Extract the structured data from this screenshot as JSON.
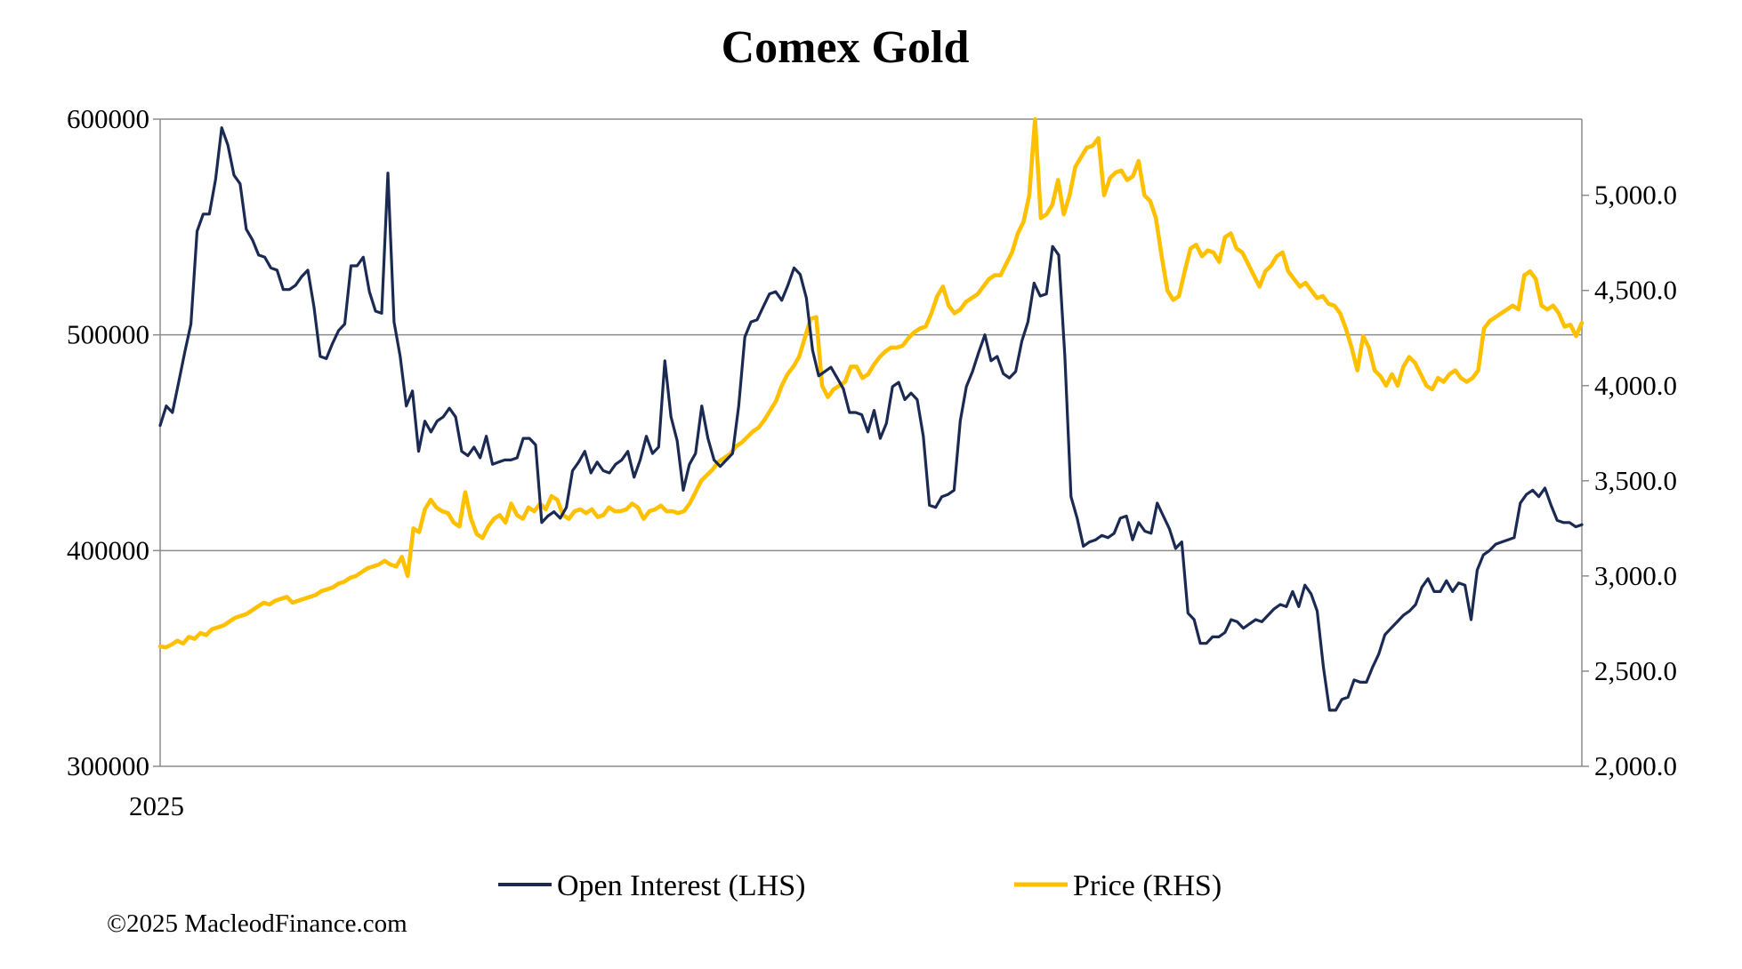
{
  "footer": "©2025 MacleodFinance.com",
  "chart_data": {
    "type": "line",
    "title": "Comex Gold",
    "x_start_label": "2025",
    "grid": true,
    "legend_position": "bottom",
    "y_left": {
      "min": 300000,
      "max": 600000,
      "ticks": [
        300000,
        400000,
        500000,
        600000
      ],
      "tick_labels": [
        "300000",
        "400000",
        "500000",
        "600000"
      ]
    },
    "y_right": {
      "min": 2000,
      "max": 5400,
      "ticks": [
        2000,
        2500,
        3000,
        3500,
        4000,
        4500,
        5000
      ],
      "tick_labels": [
        "2,000.0",
        "2,500.0",
        "3,000.0",
        "3,500.0",
        "4,000.0",
        "4,500.0",
        "5,000.0"
      ]
    },
    "series": [
      {
        "name": "Open Interest (LHS)",
        "axis": "left",
        "color": "#1b2a52",
        "values": [
          458000,
          467000,
          464000,
          478000,
          492000,
          505000,
          548000,
          556000,
          556000,
          572000,
          596000,
          588000,
          574000,
          570000,
          549000,
          544000,
          537000,
          536000,
          531000,
          530000,
          521000,
          521000,
          523000,
          527000,
          530000,
          513000,
          490000,
          489000,
          496000,
          502000,
          505000,
          532000,
          532000,
          536000,
          520000,
          511000,
          510000,
          575000,
          506000,
          490000,
          467000,
          474000,
          446000,
          460000,
          455000,
          460000,
          462000,
          466000,
          462000,
          446000,
          444000,
          448000,
          443000,
          453000,
          440000,
          441000,
          442000,
          442000,
          443000,
          452000,
          452000,
          449000,
          413000,
          416000,
          418000,
          415000,
          420000,
          437000,
          441000,
          446000,
          436000,
          441000,
          437000,
          436000,
          440000,
          442000,
          446000,
          434000,
          442000,
          453000,
          445000,
          448000,
          488000,
          462000,
          451000,
          428000,
          440000,
          445000,
          467000,
          452000,
          442000,
          439000,
          442000,
          445000,
          467000,
          499000,
          506000,
          507000,
          513000,
          519000,
          520000,
          516000,
          523000,
          531000,
          528000,
          517000,
          493000,
          481000,
          483000,
          485000,
          480000,
          475000,
          464000,
          464000,
          463000,
          455000,
          465000,
          452000,
          459000,
          476000,
          478000,
          470000,
          473000,
          470000,
          453000,
          421000,
          420000,
          425000,
          426000,
          428000,
          460000,
          476000,
          483000,
          492000,
          500000,
          488000,
          490000,
          482000,
          480000,
          483000,
          497000,
          506000,
          524000,
          518000,
          519000,
          541000,
          537000,
          490000,
          425000,
          415000,
          402000,
          404000,
          405000,
          407000,
          406000,
          408000,
          415000,
          416000,
          405000,
          413000,
          409000,
          408000,
          422000,
          416000,
          410000,
          401000,
          404000,
          371000,
          368000,
          357000,
          357000,
          360000,
          360000,
          362000,
          368000,
          367000,
          364000,
          366000,
          368000,
          367000,
          370000,
          373000,
          375000,
          374000,
          381000,
          374000,
          384000,
          380000,
          372000,
          346000,
          326000,
          326000,
          331000,
          332000,
          340000,
          339000,
          339000,
          346000,
          352000,
          361000,
          364000,
          367000,
          370000,
          372000,
          375000,
          383000,
          387000,
          381000,
          381000,
          386000,
          381000,
          385000,
          384000,
          368000,
          391000,
          398000,
          400000,
          403000,
          404000,
          405000,
          406000,
          422000,
          426000,
          428000,
          425000,
          429000,
          421000,
          414000,
          413000,
          413000,
          411000,
          412000
        ],
        "values_note_sampled": true
      },
      {
        "name": "Price (RHS)",
        "axis": "right",
        "color": "#ffc000",
        "values": [
          2630,
          2625,
          2640,
          2660,
          2645,
          2680,
          2670,
          2700,
          2690,
          2720,
          2730,
          2740,
          2760,
          2780,
          2790,
          2800,
          2820,
          2840,
          2860,
          2850,
          2870,
          2880,
          2890,
          2860,
          2870,
          2880,
          2890,
          2900,
          2920,
          2930,
          2940,
          2960,
          2970,
          2990,
          3000,
          3020,
          3040,
          3050,
          3060,
          3080,
          3060,
          3050,
          3100,
          3000,
          3250,
          3230,
          3350,
          3400,
          3360,
          3340,
          3330,
          3280,
          3260,
          3440,
          3300,
          3220,
          3200,
          3260,
          3300,
          3320,
          3280,
          3380,
          3320,
          3300,
          3360,
          3340,
          3380,
          3350,
          3420,
          3400,
          3320,
          3300,
          3340,
          3350,
          3330,
          3350,
          3310,
          3320,
          3360,
          3340,
          3340,
          3350,
          3380,
          3360,
          3300,
          3340,
          3350,
          3370,
          3340,
          3340,
          3330,
          3340,
          3380,
          3440,
          3500,
          3530,
          3560,
          3600,
          3620,
          3640,
          3680,
          3700,
          3730,
          3760,
          3780,
          3820,
          3870,
          3920,
          4000,
          4060,
          4100,
          4150,
          4250,
          4350,
          4360,
          4000,
          3940,
          3980,
          4000,
          4020,
          4100,
          4100,
          4040,
          4060,
          4110,
          4150,
          4180,
          4200,
          4200,
          4210,
          4250,
          4280,
          4300,
          4310,
          4380,
          4470,
          4520,
          4420,
          4380,
          4400,
          4440,
          4460,
          4480,
          4520,
          4560,
          4580,
          4580,
          4640,
          4700,
          4800,
          4860,
          5000,
          5400,
          4880,
          4900,
          4950,
          5080,
          4900,
          5000,
          5150,
          5200,
          5250,
          5260,
          5300,
          5000,
          5090,
          5120,
          5130,
          5080,
          5100,
          5180,
          5000,
          4970,
          4880,
          4680,
          4500,
          4450,
          4470,
          4600,
          4720,
          4740,
          4680,
          4710,
          4700,
          4650,
          4780,
          4800,
          4720,
          4700,
          4640,
          4580,
          4520,
          4600,
          4630,
          4680,
          4700,
          4600,
          4560,
          4520,
          4540,
          4500,
          4460,
          4470,
          4430,
          4420,
          4380,
          4300,
          4200,
          4080,
          4260,
          4200,
          4080,
          4050,
          4000,
          4060,
          4000,
          4100,
          4150,
          4120,
          4060,
          4000,
          3980,
          4040,
          4020,
          4060,
          4080,
          4040,
          4020,
          4040,
          4080,
          4300,
          4340,
          4360,
          4380,
          4400,
          4420,
          4400,
          4580,
          4600,
          4560,
          4420,
          4400,
          4420,
          4380,
          4310,
          4320,
          4260,
          4330
        ],
        "values_note_sampled": true
      }
    ]
  }
}
